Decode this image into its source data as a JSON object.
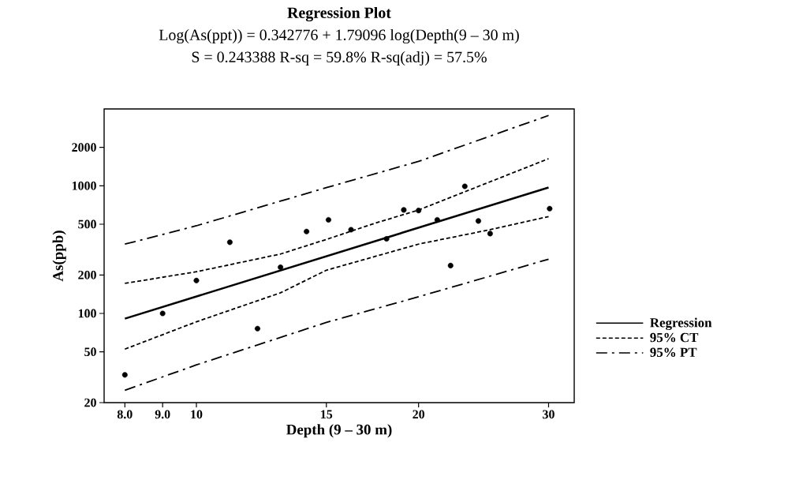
{
  "chart_data": {
    "type": "line",
    "title": "Regression Plot",
    "subtitle": "Log(As(ppt)) = 0.342776 + 1.79096 log(Depth(9 – 30 m)",
    "annotations": [
      "S = 0.243388    R-sq = 59.8%    R-sq(adj) = 57.5%"
    ],
    "xlabel": "Depth (9 – 30 m)",
    "ylabel": "As(ppb)",
    "log": "xy",
    "xlim": [
      7.5,
      32.5
    ],
    "ylim": [
      20,
      4000
    ],
    "xticks": [
      {
        "value": 8,
        "label": "8.0"
      },
      {
        "value": 9,
        "label": "9.0"
      },
      10,
      15,
      20,
      30
    ],
    "yticks": [
      20,
      50,
      100,
      200,
      500,
      1000,
      2000
    ],
    "legend": "right",
    "series": [
      {
        "name": "Regression",
        "line_style": "solid",
        "color": "#000000",
        "x": [
          8,
          30
        ],
        "values": [
          91,
          970
        ]
      },
      {
        "name": "95% CT",
        "line_style": "dashed",
        "color": "#000000",
        "x": [
          8,
          10,
          13,
          15,
          17.5,
          20,
          30
        ],
        "values": [
          172,
          212,
          292,
          380,
          511,
          646,
          1630
        ]
      },
      {
        "line_style": "dashed",
        "color": "#000000",
        "x": [
          8,
          10,
          13,
          15,
          20,
          25,
          30
        ],
        "values": [
          52.5,
          86,
          145,
          218,
          349,
          453,
          574
        ]
      },
      {
        "name": "95% PT",
        "line_style": "dashdot",
        "color": "#000000",
        "x": [
          8,
          10,
          15,
          20,
          30
        ],
        "values": [
          349,
          486,
          967,
          1553,
          3557
        ]
      },
      {
        "line_style": "dashdot",
        "color": "#000000",
        "x": [
          8,
          10,
          15,
          20,
          30
        ],
        "values": [
          25,
          39.5,
          85,
          135,
          266
        ]
      },
      {
        "type": "scatter",
        "marker": "circle",
        "color": "#000000",
        "x": [
          8.0,
          9.0,
          10,
          11.1,
          12.1,
          13.0,
          14.1,
          15.1,
          16.2,
          18.1,
          19.1,
          20.0,
          21.2,
          22.1,
          23.1,
          24.1,
          25.0,
          30.1
        ],
        "values": [
          33,
          100,
          181,
          361,
          76,
          230,
          438,
          541,
          453,
          384,
          647,
          640,
          541,
          237,
          990,
          530,
          422,
          662
        ]
      }
    ]
  }
}
